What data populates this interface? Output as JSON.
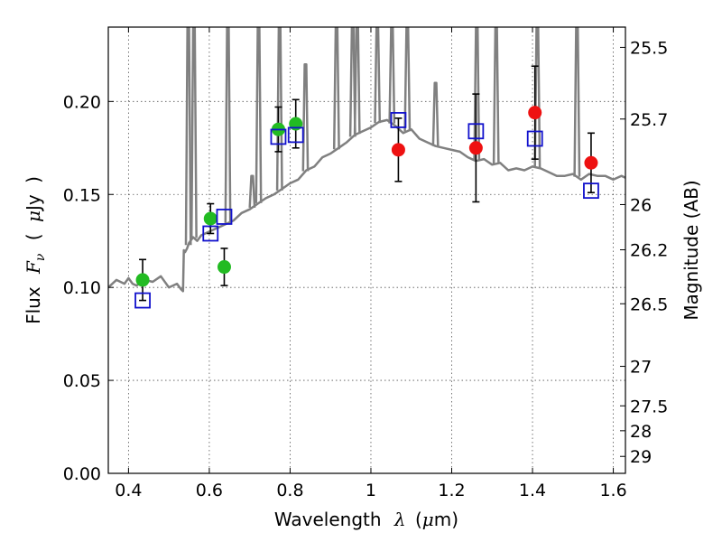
{
  "chart_data": {
    "type": "scatter",
    "title": "",
    "xlabel": "Wavelength",
    "xlabel_symbol": "λ",
    "xlabel_unit_open": "(",
    "xlabel_unit_mu": "μ",
    "xlabel_unit_rest": "m)",
    "ylabel_flux": "Flux",
    "ylabel_symbol": "F",
    "ylabel_subscript": "ν",
    "ylabel_unit_open": "(",
    "ylabel_unit_mu": "μ",
    "ylabel_unit_rest": "Jy",
    "ylabel_unit_close": ")",
    "ylabel_right": "Magnitude (AB)",
    "xlim": [
      0.35,
      1.63
    ],
    "ylim": [
      0.0,
      0.24
    ],
    "grid": true,
    "x_ticks": [
      0.4,
      0.6,
      0.8,
      1.0,
      1.2,
      1.4,
      1.6
    ],
    "x_tick_labels": [
      "0.4",
      "0.6",
      "0.8",
      "1",
      "1.2",
      "1.4",
      "1.6"
    ],
    "y_ticks": [
      0.0,
      0.05,
      0.1,
      0.15,
      0.2
    ],
    "y_tick_labels": [
      "0.00",
      "0.05",
      "0.10",
      "0.15",
      "0.20"
    ],
    "right_ticks": [
      {
        "label": "25.5",
        "value": 25.5
      },
      {
        "label": "25.7",
        "value": 25.7
      },
      {
        "label": "26",
        "value": 26.0
      },
      {
        "label": "26.2",
        "value": 26.2
      },
      {
        "label": "26.5",
        "value": 26.5
      },
      {
        "label": "27",
        "value": 27.0
      },
      {
        "label": "27.5",
        "value": 27.5
      },
      {
        "label": "28",
        "value": 28.0
      },
      {
        "label": "29",
        "value": 29.0
      }
    ],
    "colors": {
      "model": "#808080",
      "optical": "#22bb22",
      "infrared": "#ee1111",
      "model_photometry": "#1111cc",
      "errorbar": "#000000",
      "grid": "#555555"
    },
    "series": [
      {
        "kind": "line",
        "color": "#808080",
        "x": [
          0.35,
          0.37,
          0.39,
          0.4,
          0.41,
          0.42,
          0.44,
          0.46,
          0.48,
          0.5,
          0.52,
          0.53,
          0.535,
          0.537,
          0.54,
          0.545,
          0.55,
          0.56,
          0.57,
          0.58,
          0.6,
          0.62,
          0.64,
          0.66,
          0.68,
          0.7,
          0.72,
          0.74,
          0.76,
          0.78,
          0.8,
          0.82,
          0.84,
          0.86,
          0.88,
          0.9,
          0.92,
          0.94,
          0.96,
          0.98,
          1.0,
          1.02,
          1.04,
          1.06,
          1.08,
          1.1,
          1.12,
          1.14,
          1.16,
          1.18,
          1.2,
          1.22,
          1.24,
          1.26,
          1.28,
          1.3,
          1.32,
          1.34,
          1.36,
          1.38,
          1.4,
          1.42,
          1.44,
          1.46,
          1.48,
          1.5,
          1.52,
          1.54,
          1.56,
          1.58,
          1.6,
          1.62,
          1.63
        ],
        "y": [
          0.1,
          0.104,
          0.102,
          0.105,
          0.102,
          0.101,
          0.104,
          0.103,
          0.106,
          0.1,
          0.102,
          0.099,
          0.098,
          0.12,
          0.119,
          0.121,
          0.124,
          0.127,
          0.125,
          0.128,
          0.13,
          0.132,
          0.134,
          0.136,
          0.14,
          0.142,
          0.145,
          0.148,
          0.15,
          0.153,
          0.156,
          0.158,
          0.163,
          0.165,
          0.17,
          0.172,
          0.175,
          0.178,
          0.182,
          0.184,
          0.186,
          0.189,
          0.19,
          0.187,
          0.183,
          0.185,
          0.18,
          0.178,
          0.176,
          0.175,
          0.174,
          0.173,
          0.17,
          0.168,
          0.169,
          0.166,
          0.167,
          0.163,
          0.164,
          0.163,
          0.165,
          0.164,
          0.162,
          0.16,
          0.16,
          0.161,
          0.158,
          0.161,
          0.16,
          0.16,
          0.158,
          0.16,
          0.159
        ]
      },
      {
        "kind": "emission-lines",
        "color": "#808080",
        "x": [
          0.548,
          0.562,
          0.646,
          0.706,
          0.722,
          0.774,
          0.838,
          0.915,
          0.955,
          0.966,
          1.016,
          1.052,
          1.09,
          1.16,
          1.262,
          1.31,
          1.412,
          1.51
        ],
        "y": [
          0.24,
          0.24,
          0.24,
          0.16,
          0.24,
          0.24,
          0.22,
          0.24,
          0.24,
          0.24,
          0.24,
          0.24,
          0.24,
          0.21,
          0.24,
          0.24,
          0.24,
          0.24
        ]
      },
      {
        "kind": "points",
        "marker": "circle",
        "color": "#22bb22",
        "x": [
          0.435,
          0.603,
          0.637,
          0.771,
          0.814
        ],
        "y": [
          0.104,
          0.137,
          0.111,
          0.185,
          0.188
        ],
        "yerr": [
          0.011,
          0.008,
          0.01,
          0.012,
          0.013
        ]
      },
      {
        "kind": "points",
        "marker": "circle",
        "color": "#ee1111",
        "x": [
          1.068,
          1.26,
          1.406,
          1.545
        ],
        "y": [
          0.174,
          0.175,
          0.194,
          0.167
        ],
        "yerr": [
          0.017,
          0.029,
          0.025,
          0.016
        ]
      },
      {
        "kind": "points",
        "marker": "square-open",
        "color": "#1111cc",
        "x": [
          0.435,
          0.603,
          0.637,
          0.771,
          0.814,
          1.068,
          1.26,
          1.406,
          1.545
        ],
        "y": [
          0.093,
          0.129,
          0.138,
          0.181,
          0.182,
          0.19,
          0.184,
          0.18,
          0.152
        ]
      }
    ]
  }
}
